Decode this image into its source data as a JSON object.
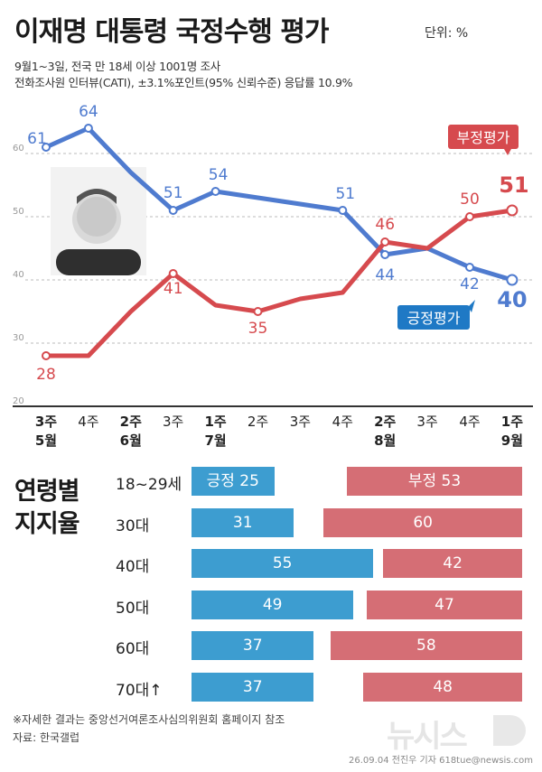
{
  "title": "이재명 대통령 국정수행 평가",
  "unit": "단위: %",
  "subtitle_line1": "9월1~3일, 전국 만 18세 이상 1001명 조사",
  "subtitle_line2": "전화조사원 인터뷰(CATI), ±3.1%포인트(95% 신뢰수준) 응답률 10.9%",
  "colors": {
    "positive": "#4f7bcf",
    "negative": "#d64a4e",
    "positive_bar": "#3d9dd0",
    "negative_bar": "#d56e75",
    "grid": "#bbbbbb"
  },
  "chart_data": [
    {
      "type": "line",
      "ylim": [
        20,
        70
      ],
      "y_ticks": [
        "20",
        "30",
        "40",
        "50",
        "60"
      ],
      "grid": true,
      "categories": [
        "3주",
        "4주",
        "2주",
        "3주",
        "1주",
        "2주",
        "3주",
        "4주",
        "2주",
        "3주",
        "4주",
        "1주"
      ],
      "month_labels": [
        "5월",
        "",
        "6월",
        "",
        "7월",
        "",
        "",
        "",
        "8월",
        "",
        "",
        "9월"
      ],
      "series": [
        {
          "name": "긍정평가",
          "values": [
            61,
            64,
            57,
            51,
            54,
            53,
            52,
            51,
            44,
            45,
            42,
            40
          ],
          "labels": [
            "61",
            "64",
            "",
            "51",
            "54",
            "",
            "",
            "51",
            "44",
            "",
            "42",
            "40"
          ]
        },
        {
          "name": "부정평가",
          "values": [
            28,
            28,
            35,
            41,
            36,
            35,
            37,
            38,
            46,
            45,
            50,
            51
          ],
          "labels": [
            "28",
            "",
            "",
            "41",
            "",
            "35",
            "",
            "",
            "46",
            "",
            "50",
            "51"
          ]
        }
      ]
    },
    {
      "type": "bar",
      "title": "연령별 지지율",
      "categories": [
        "18~29세",
        "30대",
        "40대",
        "50대",
        "60대",
        "70대↑"
      ],
      "series": [
        {
          "name": "긍정",
          "values": [
            25,
            31,
            55,
            49,
            37,
            37
          ]
        },
        {
          "name": "부정",
          "values": [
            53,
            60,
            42,
            47,
            58,
            48
          ]
        }
      ]
    }
  ],
  "age_section": {
    "title_line1": "연령별",
    "title_line2": "지지율",
    "rows": [
      {
        "label": "18~29세",
        "pos_text": "긍정 25",
        "neg_text": "부정 53"
      },
      {
        "label": "30대",
        "pos_text": "31",
        "neg_text": "60"
      },
      {
        "label": "40대",
        "pos_text": "55",
        "neg_text": "42"
      },
      {
        "label": "50대",
        "pos_text": "49",
        "neg_text": "47"
      },
      {
        "label": "60대",
        "pos_text": "37",
        "neg_text": "58"
      },
      {
        "label": "70대↑",
        "pos_text": "37",
        "neg_text": "48"
      }
    ]
  },
  "footnote": "※자세한 결과는 중앙선거여론조사심의위원회 홈페이지 참조",
  "source": "자료: 한국갤럽",
  "credit": "26.09.04 전진우 기자 618tue@newsis.com",
  "watermark": "뉴시스"
}
